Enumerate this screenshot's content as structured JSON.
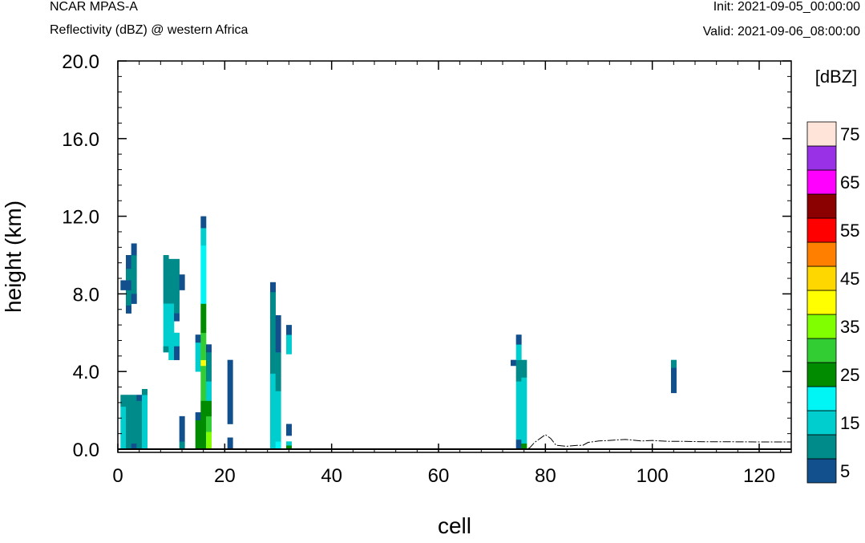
{
  "header": {
    "left_title": "NCAR MPAS-A",
    "left_subtitle": "Reflectivity (dBZ) @ western Africa",
    "right_title": "Init: 2021-09-05_00:00:00",
    "right_subtitle": "Valid: 2021-09-06_08:00:00"
  },
  "chart_data": {
    "type": "heatmap",
    "title": "Reflectivity (dBZ) @ western Africa",
    "xlabel": "cell",
    "ylabel": "height (km)",
    "xlim": [
      0,
      126
    ],
    "ylim": [
      -0.2,
      20.0
    ],
    "x_ticks": [
      0,
      20,
      40,
      60,
      80,
      100,
      120
    ],
    "x_tick_labels": [
      "0",
      "20",
      "40",
      "60",
      "80",
      "100",
      "120"
    ],
    "y_ticks": [
      0,
      4,
      8,
      12,
      16,
      20
    ],
    "y_tick_labels": [
      "0.0",
      "4.0",
      "8.0",
      "12.0",
      "16.0",
      "20.0"
    ],
    "colorbar": {
      "units_label": "[dBZ]",
      "levels": [
        5,
        10,
        15,
        20,
        25,
        30,
        35,
        40,
        45,
        50,
        55,
        60,
        65,
        70,
        75
      ],
      "tick_labels": [
        "5",
        "15",
        "25",
        "35",
        "45",
        "55",
        "65",
        "75"
      ],
      "colors": [
        "#12508d",
        "#008b8b",
        "#00cdcd",
        "#00f5f5",
        "#008b00",
        "#32cd32",
        "#7fff00",
        "#ffff00",
        "#ffd700",
        "#ff7f00",
        "#ff0000",
        "#8b0000",
        "#ff00ff",
        "#9932e6",
        "#ffe4da"
      ]
    },
    "columns": [
      {
        "x": 1,
        "cells": [
          [
            0.0,
            2.2,
            2
          ],
          [
            2.2,
            2.4,
            1
          ],
          [
            2.4,
            2.8,
            1
          ],
          [
            8.2,
            8.7,
            0
          ]
        ]
      },
      {
        "x": 2,
        "cells": [
          [
            0.0,
            2.8,
            1
          ],
          [
            7.2,
            9.3,
            1
          ],
          [
            7.0,
            7.4,
            0
          ],
          [
            8.2,
            8.7,
            0
          ],
          [
            9.3,
            10.0,
            0
          ]
        ]
      },
      {
        "x": 3,
        "cells": [
          [
            0.0,
            0.3,
            0
          ],
          [
            0.3,
            2.8,
            1
          ],
          [
            7.5,
            10.0,
            1
          ],
          [
            7.5,
            8.0,
            0
          ],
          [
            10.0,
            10.6,
            0
          ]
        ]
      },
      {
        "x": 4,
        "cells": [
          [
            0.0,
            2.5,
            1
          ],
          [
            2.5,
            2.8,
            0
          ]
        ]
      },
      {
        "x": 5,
        "cells": [
          [
            0.0,
            2.8,
            2
          ],
          [
            2.8,
            3.1,
            1
          ]
        ]
      },
      {
        "x": 9,
        "cells": [
          [
            7.5,
            10.0,
            1
          ],
          [
            5.0,
            7.5,
            2
          ],
          [
            5.0,
            5.3,
            1
          ]
        ]
      },
      {
        "x": 10,
        "cells": [
          [
            7.5,
            9.8,
            1
          ],
          [
            4.6,
            7.5,
            2
          ],
          [
            4.6,
            5.0,
            2
          ]
        ]
      },
      {
        "x": 11,
        "cells": [
          [
            7.0,
            9.8,
            1
          ],
          [
            6.6,
            7.0,
            0
          ],
          [
            5.0,
            6.0,
            2
          ],
          [
            4.6,
            5.3,
            0
          ]
        ]
      },
      {
        "x": 12,
        "cells": [
          [
            0.0,
            0.4,
            1
          ],
          [
            0.4,
            1.7,
            0
          ],
          [
            8.2,
            9.0,
            0
          ]
        ]
      },
      {
        "x": 15,
        "cells": [
          [
            0.0,
            1.5,
            4
          ],
          [
            1.5,
            1.9,
            0
          ],
          [
            4.0,
            5.5,
            2
          ],
          [
            5.5,
            5.9,
            0
          ]
        ]
      },
      {
        "x": 16,
        "cells": [
          [
            0.0,
            2.5,
            4
          ],
          [
            2.5,
            4.3,
            5
          ],
          [
            4.3,
            4.6,
            7
          ],
          [
            4.6,
            6.0,
            5
          ],
          [
            6.0,
            7.5,
            4
          ],
          [
            7.5,
            10.5,
            3
          ],
          [
            10.5,
            11.4,
            2
          ],
          [
            11.4,
            12.0,
            0
          ]
        ]
      },
      {
        "x": 17,
        "cells": [
          [
            0.0,
            0.9,
            6
          ],
          [
            0.9,
            1.7,
            5
          ],
          [
            1.7,
            2.5,
            4
          ],
          [
            2.5,
            3.5,
            2
          ],
          [
            3.5,
            5.3,
            1
          ],
          [
            5.0,
            5.4,
            0
          ]
        ]
      },
      {
        "x": 21,
        "cells": [
          [
            0.0,
            0.6,
            0
          ],
          [
            1.3,
            4.6,
            0
          ]
        ]
      },
      {
        "x": 29,
        "cells": [
          [
            0.0,
            3.9,
            2
          ],
          [
            3.9,
            8.6,
            1
          ],
          [
            8.1,
            8.6,
            0
          ]
        ]
      },
      {
        "x": 30,
        "cells": [
          [
            0.0,
            0.4,
            3
          ],
          [
            0.4,
            3.0,
            2
          ],
          [
            3.0,
            5.0,
            1
          ],
          [
            5.0,
            6.9,
            0
          ]
        ]
      },
      {
        "x": 32,
        "cells": [
          [
            0.0,
            0.2,
            4
          ],
          [
            0.2,
            0.4,
            2
          ],
          [
            0.7,
            1.3,
            0
          ],
          [
            4.9,
            5.9,
            2
          ],
          [
            5.9,
            6.4,
            0
          ]
        ]
      },
      {
        "x": 74,
        "cells": [
          [
            4.3,
            4.6,
            0
          ]
        ]
      },
      {
        "x": 75,
        "cells": [
          [
            0.0,
            0.5,
            0
          ],
          [
            0.5,
            3.5,
            2
          ],
          [
            3.5,
            4.6,
            1
          ],
          [
            4.6,
            5.4,
            2
          ],
          [
            5.4,
            5.9,
            0
          ]
        ]
      },
      {
        "x": 76,
        "cells": [
          [
            0.0,
            0.3,
            4
          ],
          [
            0.3,
            1.5,
            2
          ],
          [
            1.5,
            3.7,
            2
          ],
          [
            3.7,
            4.6,
            1
          ]
        ]
      },
      {
        "x": 104,
        "cells": [
          [
            2.9,
            4.2,
            0
          ],
          [
            4.2,
            4.6,
            1
          ]
        ]
      }
    ],
    "terrain": [
      [
        0,
        0.0
      ],
      [
        76,
        0.0
      ],
      [
        77,
        0.05
      ],
      [
        78,
        0.35
      ],
      [
        79,
        0.55
      ],
      [
        80,
        0.75
      ],
      [
        81,
        0.55
      ],
      [
        82,
        0.2
      ],
      [
        84,
        0.15
      ],
      [
        86,
        0.2
      ],
      [
        87,
        0.2
      ],
      [
        88,
        0.35
      ],
      [
        90,
        0.42
      ],
      [
        92,
        0.45
      ],
      [
        95,
        0.5
      ],
      [
        98,
        0.42
      ],
      [
        100,
        0.45
      ],
      [
        103,
        0.4
      ],
      [
        106,
        0.4
      ],
      [
        110,
        0.38
      ],
      [
        115,
        0.38
      ],
      [
        120,
        0.37
      ],
      [
        126,
        0.37
      ]
    ]
  }
}
